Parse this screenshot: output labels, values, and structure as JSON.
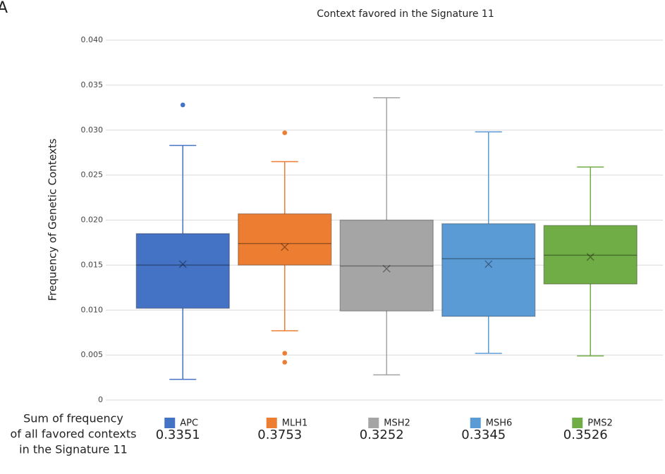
{
  "panel_label": "A",
  "chart_data": {
    "type": "box",
    "title": "Context favored in the Signature 11",
    "ylabel": "Frequency of Genetic Contexts",
    "ylim": [
      0,
      0.04
    ],
    "yticks": [
      0,
      0.005,
      {
        "value": 0.01,
        "label": "0.010"
      },
      0.015,
      {
        "value": 0.02,
        "label": "0.020"
      },
      0.025,
      {
        "value": 0.03,
        "label": "0.030"
      },
      0.035,
      {
        "value": 0.04,
        "label": "0.040"
      }
    ],
    "grid": true,
    "legend": "bottom",
    "series": [
      {
        "name": "APC",
        "color": "#4472c4",
        "whisker_low": 0.0023,
        "q1": 0.0102,
        "median": 0.015,
        "q3": 0.0185,
        "whisker_high": 0.0283,
        "mean": 0.0151,
        "outliers": [
          0.0328
        ]
      },
      {
        "name": "MLH1",
        "color": "#ed7d31",
        "whisker_low": 0.0077,
        "q1": 0.015,
        "median": 0.0174,
        "q3": 0.0207,
        "whisker_high": 0.0265,
        "mean": 0.017,
        "outliers": [
          0.0297,
          0.0052,
          0.0042
        ]
      },
      {
        "name": "MSH2",
        "color": "#a5a5a5",
        "whisker_low": 0.0028,
        "q1": 0.0099,
        "median": 0.0149,
        "q3": 0.02,
        "whisker_high": 0.0336,
        "mean": 0.0146,
        "outliers": []
      },
      {
        "name": "MSH6",
        "color": "#5b9bd5",
        "whisker_low": 0.0052,
        "q1": 0.0093,
        "median": 0.0157,
        "q3": 0.0196,
        "whisker_high": 0.0298,
        "mean": 0.0151,
        "outliers": []
      },
      {
        "name": "PMS2",
        "color": "#70ad47",
        "whisker_low": 0.0049,
        "q1": 0.0129,
        "median": 0.0161,
        "q3": 0.0194,
        "whisker_high": 0.0259,
        "mean": 0.0159,
        "outliers": []
      }
    ],
    "sum_label_lines": [
      "Sum of frequency",
      "of all favored contexts",
      "in the Signature 11"
    ],
    "sums": [
      0.3351,
      0.3753,
      0.3252,
      0.3345,
      0.3526
    ]
  }
}
